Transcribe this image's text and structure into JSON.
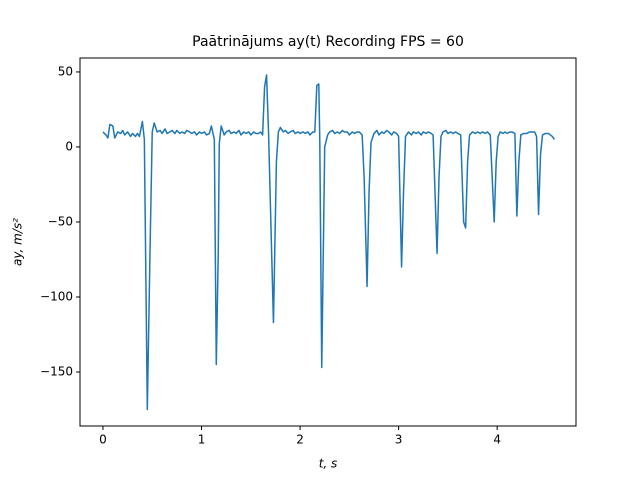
{
  "chart_data": {
    "type": "line",
    "title": "Paātrinājums ay(t) Recording FPS = 60",
    "x_label": "t, s",
    "y_label": "ay, m/s²",
    "xlim": [
      -0.233,
      4.8
    ],
    "ylim": [
      -186,
      59.3
    ],
    "xticks": [
      0,
      1,
      2,
      3,
      4
    ],
    "yticks": [
      {
        "value": -150,
        "label": "−150"
      },
      {
        "value": -100,
        "label": "−100"
      },
      {
        "value": -50,
        "label": "−50"
      },
      0,
      50
    ],
    "grid": false,
    "x": [
      0,
      0.03,
      0.05,
      0.07,
      0.1,
      0.12,
      0.15,
      0.18,
      0.2,
      0.22,
      0.25,
      0.28,
      0.3,
      0.33,
      0.35,
      0.37,
      0.4,
      0.42,
      0.45,
      0.48,
      0.5,
      0.52,
      0.55,
      0.58,
      0.6,
      0.63,
      0.65,
      0.68,
      0.7,
      0.73,
      0.75,
      0.78,
      0.8,
      0.83,
      0.85,
      0.88,
      0.9,
      0.93,
      0.95,
      0.98,
      1.0,
      1.03,
      1.05,
      1.08,
      1.1,
      1.13,
      1.15,
      1.17,
      1.18,
      1.2,
      1.23,
      1.25,
      1.28,
      1.3,
      1.33,
      1.35,
      1.38,
      1.4,
      1.43,
      1.45,
      1.48,
      1.5,
      1.53,
      1.55,
      1.58,
      1.6,
      1.62,
      1.64,
      1.66,
      1.68,
      1.73,
      1.76,
      1.78,
      1.8,
      1.83,
      1.85,
      1.88,
      1.9,
      1.93,
      1.95,
      1.98,
      2.0,
      2.03,
      2.05,
      2.08,
      2.1,
      2.13,
      2.15,
      2.17,
      2.19,
      2.2,
      2.22,
      2.24,
      2.25,
      2.28,
      2.3,
      2.33,
      2.35,
      2.38,
      2.4,
      2.43,
      2.45,
      2.48,
      2.5,
      2.53,
      2.55,
      2.58,
      2.6,
      2.63,
      2.65,
      2.68,
      2.7,
      2.72,
      2.75,
      2.78,
      2.8,
      2.83,
      2.85,
      2.88,
      2.9,
      2.93,
      2.95,
      2.98,
      3.0,
      3.03,
      3.05,
      3.07,
      3.1,
      3.13,
      3.15,
      3.18,
      3.2,
      3.23,
      3.25,
      3.28,
      3.3,
      3.33,
      3.35,
      3.39,
      3.41,
      3.43,
      3.45,
      3.48,
      3.5,
      3.53,
      3.55,
      3.58,
      3.6,
      3.63,
      3.66,
      3.68,
      3.7,
      3.72,
      3.75,
      3.78,
      3.8,
      3.83,
      3.85,
      3.88,
      3.9,
      3.93,
      3.97,
      3.99,
      4.01,
      4.03,
      4.06,
      4.08,
      4.1,
      4.13,
      4.15,
      4.18,
      4.2,
      4.22,
      4.24,
      4.27,
      4.3,
      4.33,
      4.35,
      4.38,
      4.4,
      4.42,
      4.44,
      4.46,
      4.49,
      4.52,
      4.54,
      4.56,
      4.58
    ],
    "series": [
      {
        "name": "ay",
        "color": "#1f77b4",
        "values": [
          10,
          8,
          6,
          15,
          14,
          6,
          10,
          9,
          11,
          8,
          10,
          7,
          9,
          7,
          9,
          7,
          17,
          5,
          -175,
          -60,
          10,
          16,
          10,
          11,
          9,
          12,
          9,
          10,
          11,
          9,
          11,
          9,
          10,
          9,
          11,
          10,
          9,
          10,
          8,
          10,
          9,
          10,
          8,
          9,
          14,
          5,
          -145,
          -70,
          2,
          14,
          8,
          10,
          11,
          9,
          10,
          9,
          11,
          8,
          10,
          9,
          10,
          8,
          10,
          9,
          9,
          10,
          8,
          40,
          48,
          10,
          -117,
          -10,
          10,
          13,
          10,
          11,
          9,
          10,
          11,
          9,
          10,
          9,
          10,
          9,
          10,
          8,
          10,
          10,
          41,
          42,
          5,
          -147,
          -50,
          0,
          8,
          10,
          11,
          9,
          10,
          9,
          11,
          10,
          10,
          8,
          10,
          9,
          10,
          10,
          8,
          -20,
          -93,
          -30,
          3,
          9,
          11,
          8,
          10,
          9,
          11,
          10,
          8,
          10,
          9,
          7,
          -80,
          -30,
          7,
          10,
          8,
          10,
          9,
          10,
          8,
          10,
          9,
          10,
          9,
          8,
          -71,
          -20,
          7,
          10,
          11,
          9,
          10,
          9,
          10,
          9,
          8,
          -50,
          -54,
          -10,
          8,
          10,
          9,
          10,
          9,
          10,
          9,
          10,
          8,
          -50,
          -10,
          7,
          10,
          9,
          10,
          9,
          10,
          10,
          9,
          -46,
          -10,
          8,
          9,
          9,
          10,
          10,
          10,
          7,
          -45,
          -5,
          8,
          9,
          9,
          8,
          7,
          5
        ]
      }
    ]
  }
}
